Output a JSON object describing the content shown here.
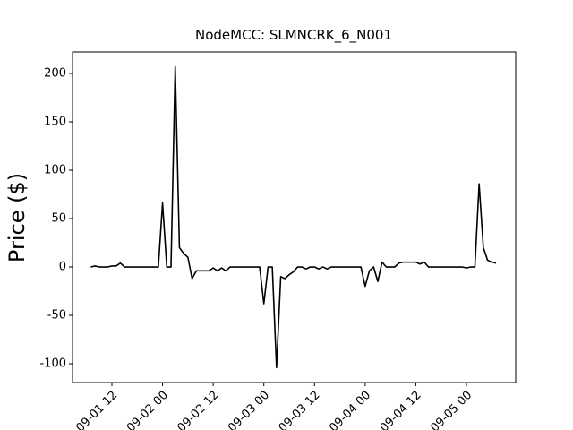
{
  "chart_data": {
    "type": "line",
    "title": "NodeMCC: SLMNCRK_6_N001",
    "y_label": "Price ($)",
    "x": [
      "09-01 07",
      "09-01 08",
      "09-01 09",
      "09-01 10",
      "09-01 11",
      "09-01 12",
      "09-01 13",
      "09-01 14",
      "09-01 15",
      "09-01 16",
      "09-01 17",
      "09-01 18",
      "09-01 19",
      "09-01 20",
      "09-01 21",
      "09-01 22",
      "09-01 23",
      "09-02 00",
      "09-02 01",
      "09-02 02",
      "09-02 03",
      "09-02 04",
      "09-02 05",
      "09-02 06",
      "09-02 07",
      "09-02 08",
      "09-02 09",
      "09-02 10",
      "09-02 11",
      "09-02 12",
      "09-02 13",
      "09-02 14",
      "09-02 15",
      "09-02 16",
      "09-02 17",
      "09-02 18",
      "09-02 19",
      "09-02 20",
      "09-02 21",
      "09-02 22",
      "09-02 23",
      "09-03 00",
      "09-03 01",
      "09-03 02",
      "09-03 03",
      "09-03 04",
      "09-03 05",
      "09-03 06",
      "09-03 07",
      "09-03 08",
      "09-03 09",
      "09-03 10",
      "09-03 11",
      "09-03 12",
      "09-03 13",
      "09-03 14",
      "09-03 15",
      "09-03 16",
      "09-03 17",
      "09-03 18",
      "09-03 19",
      "09-03 20",
      "09-03 21",
      "09-03 22",
      "09-03 23",
      "09-04 00",
      "09-04 01",
      "09-04 02",
      "09-04 03",
      "09-04 04",
      "09-04 05",
      "09-04 06",
      "09-04 07",
      "09-04 08",
      "09-04 09",
      "09-04 10",
      "09-04 11",
      "09-04 12",
      "09-04 13",
      "09-04 14",
      "09-04 15",
      "09-04 16",
      "09-04 17",
      "09-04 18",
      "09-04 19",
      "09-04 20",
      "09-04 21",
      "09-04 22",
      "09-04 23",
      "09-05 00",
      "09-05 01",
      "09-05 02",
      "09-05 03",
      "09-05 04",
      "09-05 05",
      "09-05 06",
      "09-05 07"
    ],
    "series": [
      {
        "color": "#000000",
        "values": [
          0,
          1,
          0,
          0,
          0,
          1,
          1,
          4,
          0,
          0,
          0,
          0,
          0,
          0,
          0,
          0,
          0,
          66,
          0,
          0,
          207,
          20,
          14,
          10,
          -12,
          -4,
          -4,
          -4,
          -4,
          -1,
          -4,
          -1,
          -4,
          0,
          0,
          0,
          0,
          0,
          0,
          0,
          0,
          -38,
          0,
          0,
          -104,
          -10,
          -12,
          -8,
          -5,
          0,
          0,
          -2,
          0,
          0,
          -2,
          0,
          -2,
          0,
          0,
          0,
          0,
          0,
          0,
          0,
          0,
          -20,
          -4,
          0,
          -15,
          5,
          0,
          0,
          0,
          4,
          5,
          5,
          5,
          5,
          3,
          5,
          0,
          0,
          0,
          0,
          0,
          0,
          0,
          0,
          0,
          -1,
          0,
          0,
          86,
          20,
          7,
          5,
          4
        ]
      }
    ],
    "xlim": [
      "09-01 02:40",
      "09-05 11:40"
    ],
    "xticks": [
      "09-01 12",
      "09-02 00",
      "09-02 12",
      "09-03 00",
      "09-03 12",
      "09-04 00",
      "09-04 12",
      "09-05 00"
    ],
    "ylim": [
      -119.4,
      222.2
    ],
    "yticks": [
      -100,
      -50,
      0,
      50,
      100,
      150,
      200
    ]
  }
}
